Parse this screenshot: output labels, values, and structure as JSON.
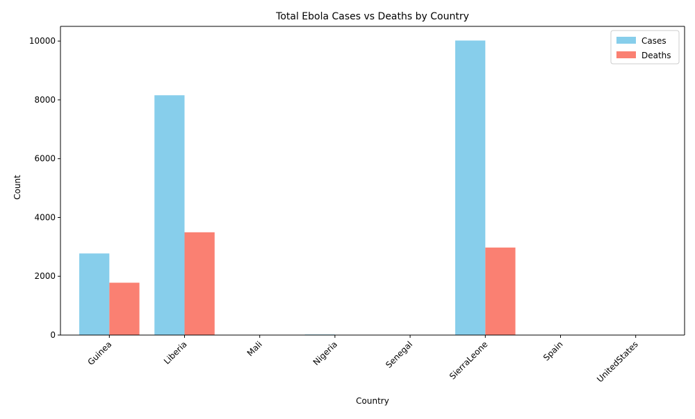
{
  "chart_data": {
    "type": "bar",
    "title": "Total Ebola Cases vs Deaths by Country",
    "xlabel": "Country",
    "ylabel": "Count",
    "categories": [
      "Guinea",
      "Liberia",
      "Mali",
      "Nigeria",
      "Senegal",
      "SierraLeone",
      "Spain",
      "UnitedStates"
    ],
    "series": [
      {
        "name": "Cases",
        "color": "#87CEEB",
        "values": [
          2776,
          8157,
          8,
          20,
          1,
          10018,
          1,
          4
        ]
      },
      {
        "name": "Deaths",
        "color": "#FA8072",
        "values": [
          1781,
          3496,
          6,
          8,
          0,
          2977,
          0,
          1
        ]
      }
    ],
    "ylim": [
      0,
      10500
    ],
    "yticks": [
      0,
      2000,
      4000,
      6000,
      8000,
      10000
    ],
    "legend_position": "top-right",
    "grid": false
  }
}
